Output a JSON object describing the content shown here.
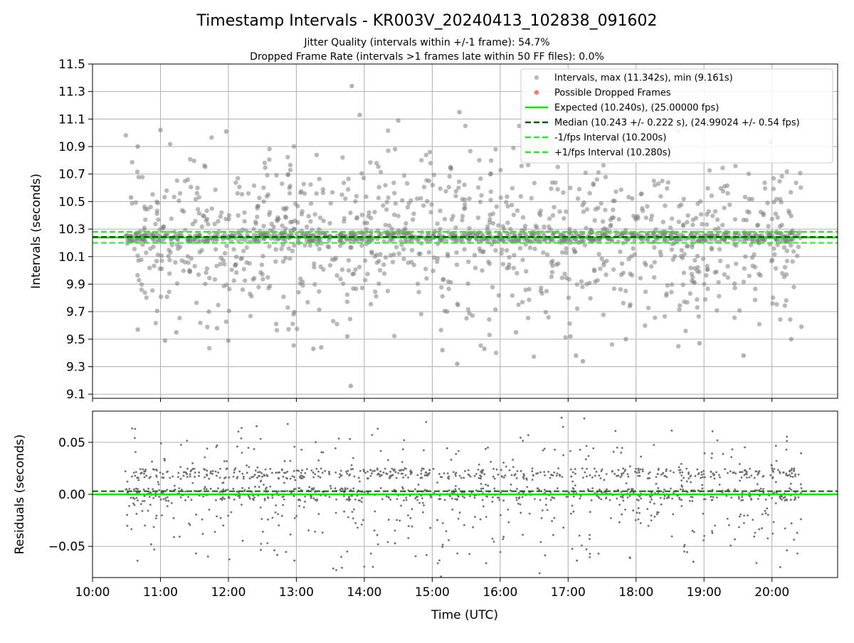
{
  "figure": {
    "title": "Timestamp Intervals - KR003V_20240413_102838_091602",
    "subtitle_1": "Jitter Quality (intervals within +/-1 frame): 54.7%",
    "subtitle_2": "Dropped Frame Rate (intervals >1 frames late within 50 FF files): 0.0%"
  },
  "colors": {
    "points": "#808080",
    "dropped": "#ff0000",
    "expected": "#00ee00",
    "median": "#006400",
    "bounds": "#22ee22",
    "grid": "#b0b0b0"
  },
  "chart_data": [
    {
      "type": "scatter",
      "ylabel": "Intervals (seconds)",
      "xlabel": "",
      "xlim": [
        "10:00",
        "20:58"
      ],
      "ylim": [
        9.07,
        11.5
      ],
      "yticks": [
        9.1,
        9.3,
        9.5,
        9.7,
        9.9,
        10.1,
        10.3,
        10.5,
        10.7,
        10.9,
        11.1,
        11.3,
        11.5
      ],
      "ytick_labels": [
        "9.1",
        "9.3",
        "9.5",
        "9.7",
        "9.9",
        "10.1",
        "10.3",
        "10.5",
        "10.7",
        "10.9",
        "11.1",
        "11.3",
        "11.5"
      ],
      "xticks": [
        "10:00",
        "11:00",
        "12:00",
        "13:00",
        "14:00",
        "15:00",
        "16:00",
        "17:00",
        "18:00",
        "19:00",
        "20:00"
      ],
      "grid": true,
      "legend_position": "top-right",
      "legend": [
        {
          "label": "Intervals, max (11.342s), min (9.161s)",
          "kind": "dot",
          "color": "#808080"
        },
        {
          "label": "Possible Dropped Frames",
          "kind": "dot",
          "color": "#ff0000"
        },
        {
          "label": "Expected (10.240s), (25.00000 fps)",
          "kind": "line",
          "color": "#00ee00"
        },
        {
          "label": "Median (10.243 +/- 0.222 s), (24.99024 +/- 0.54 fps)",
          "kind": "dashed",
          "color": "#006400"
        },
        {
          "label": "-1/fps Interval (10.200s)",
          "kind": "dashed",
          "color": "#22ee22"
        },
        {
          "label": "+1/fps Interval (10.280s)",
          "kind": "dashed",
          "color": "#22ee22"
        }
      ],
      "reference_lines": {
        "expected": 10.24,
        "median": 10.243,
        "lower": 10.2,
        "upper": 10.28
      },
      "data_range": {
        "x_start": "10:29",
        "x_end": "20:26",
        "count": 1700
      },
      "points": [
        {
          "x": "10:34",
          "y": 10.53
        },
        {
          "x": "10:40",
          "y": 9.57
        },
        {
          "x": "10:40",
          "y": 10.9
        },
        {
          "x": "11:00",
          "y": 11.02
        },
        {
          "x": "11:04",
          "y": 9.49
        },
        {
          "x": "11:14",
          "y": 9.55
        },
        {
          "x": "11:50",
          "y": 9.58
        },
        {
          "x": "11:58",
          "y": 11.01
        },
        {
          "x": "12:00",
          "y": 9.49
        },
        {
          "x": "13:15",
          "y": 9.43
        },
        {
          "x": "13:22",
          "y": 9.44
        },
        {
          "x": "13:45",
          "y": 9.52
        },
        {
          "x": "13:48",
          "y": 9.16
        },
        {
          "x": "13:49",
          "y": 11.34
        },
        {
          "x": "13:56",
          "y": 11.13
        },
        {
          "x": "14:30",
          "y": 11.09
        },
        {
          "x": "15:09",
          "y": 9.42
        },
        {
          "x": "15:22",
          "y": 9.32
        },
        {
          "x": "15:24",
          "y": 11.15
        },
        {
          "x": "15:46",
          "y": 9.43
        },
        {
          "x": "16:14",
          "y": 9.55
        },
        {
          "x": "17:02",
          "y": 9.52
        },
        {
          "x": "17:07",
          "y": 9.38
        },
        {
          "x": "17:13",
          "y": 9.34
        },
        {
          "x": "17:26",
          "y": 11.03
        },
        {
          "x": "17:51",
          "y": 9.5
        },
        {
          "x": "18:56",
          "y": 9.47
        },
        {
          "x": "19:35",
          "y": 9.38
        },
        {
          "x": "20:17",
          "y": 9.5
        },
        {
          "x": "20:26",
          "y": 9.59
        }
      ]
    },
    {
      "type": "scatter",
      "ylabel": "Residuals (seconds)",
      "xlabel": "Time (UTC)",
      "xlim": [
        "10:00",
        "20:58"
      ],
      "ylim": [
        -0.08,
        0.08
      ],
      "yticks": [
        -0.05,
        0.0,
        0.05
      ],
      "ytick_labels": [
        "−0.05",
        "0.00",
        "0.05"
      ],
      "xticks": [
        "10:00",
        "11:00",
        "12:00",
        "13:00",
        "14:00",
        "15:00",
        "16:00",
        "17:00",
        "18:00",
        "19:00",
        "20:00"
      ],
      "grid": true,
      "reference_lines": {
        "expected": 0.0,
        "median": 0.003
      },
      "data_range": {
        "x_start": "10:29",
        "x_end": "20:26",
        "count": 1400
      }
    }
  ]
}
